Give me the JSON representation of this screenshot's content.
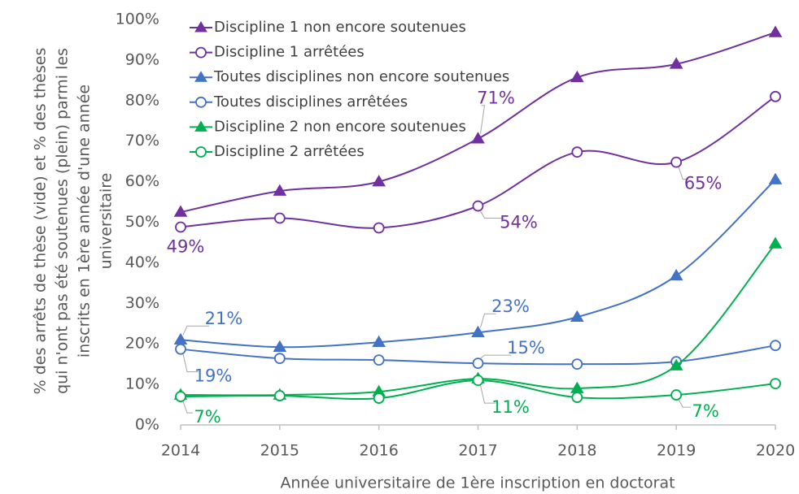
{
  "chart_data": {
    "type": "line",
    "ylabel": [
      "% des arrêts de thèse (vide) et % des thèses",
      "qui n'ont pas été soutenues (plein) parmi les",
      "inscrits en 1ère année d'une année",
      "universitaire"
    ],
    "xlabel": "Année universitaire de 1ère inscription en doctorat",
    "x": [
      2014,
      2015,
      2016,
      2017,
      2018,
      2019,
      2020
    ],
    "xlim": [
      2014,
      2020
    ],
    "xticks": [
      2014,
      2015,
      2016,
      2017,
      2018,
      2019,
      2020
    ],
    "ylim": [
      0,
      100
    ],
    "yticks": [
      {
        "value": 0,
        "label": "0%"
      },
      {
        "value": 10,
        "label": "10%"
      },
      {
        "value": 20,
        "label": "20%"
      },
      {
        "value": 30,
        "label": "30%"
      },
      {
        "value": 40,
        "label": "40%"
      },
      {
        "value": 50,
        "label": "50%"
      },
      {
        "value": 60,
        "label": "60%"
      },
      {
        "value": 70,
        "label": "70%"
      },
      {
        "value": 80,
        "label": "80%"
      },
      {
        "value": 90,
        "label": "90%"
      },
      {
        "value": 100,
        "label": "100%"
      }
    ],
    "grid": false,
    "legend": "top-left",
    "smooth": true,
    "series": [
      {
        "name": "Discipline 1 non encore soutenues",
        "color": "#7030a0",
        "marker": "triangle",
        "filled": true,
        "values": [
          52.5,
          57.7,
          60,
          70.6,
          85.7,
          89,
          96.8
        ],
        "value_labels": [
          null,
          null,
          null,
          "71%",
          null,
          null,
          null
        ]
      },
      {
        "name": "Discipline 1 arrêtées",
        "color": "#7030a0",
        "marker": "circle",
        "filled": false,
        "values": [
          48.8,
          51,
          48.6,
          54,
          67.3,
          64.8,
          81
        ],
        "value_labels": [
          "49%",
          null,
          null,
          "54%",
          null,
          "65%",
          null
        ]
      },
      {
        "name": "Toutes disciplines non encore soutenues",
        "color": "#4472c4",
        "marker": "triangle",
        "filled": true,
        "values": [
          21,
          19.2,
          20.4,
          22.8,
          26.6,
          36.8,
          60.5
        ],
        "value_labels": [
          "21%",
          null,
          null,
          "23%",
          null,
          null,
          null
        ]
      },
      {
        "name": "Toutes disciplines arrêtées",
        "color": "#4472c4",
        "marker": "circle",
        "filled": false,
        "values": [
          18.7,
          16.4,
          16,
          15.2,
          15,
          15.6,
          19.6
        ],
        "value_labels": [
          "19%",
          null,
          null,
          "15%",
          null,
          null,
          null
        ]
      },
      {
        "name": "Discipline 2 non encore soutenues",
        "color": "#00b050",
        "marker": "triangle",
        "filled": true,
        "values": [
          7.4,
          7.4,
          8.2,
          11.4,
          9,
          14.6,
          44.7
        ],
        "value_labels": [
          null,
          null,
          null,
          null,
          null,
          null,
          null
        ]
      },
      {
        "name": "Discipline 2 arrêtées",
        "color": "#00b050",
        "marker": "circle",
        "filled": false,
        "values": [
          7,
          7.2,
          6.6,
          11,
          6.8,
          7.4,
          10.2
        ],
        "value_labels": [
          "7%",
          null,
          null,
          "11%",
          null,
          "7%",
          null
        ]
      }
    ]
  }
}
